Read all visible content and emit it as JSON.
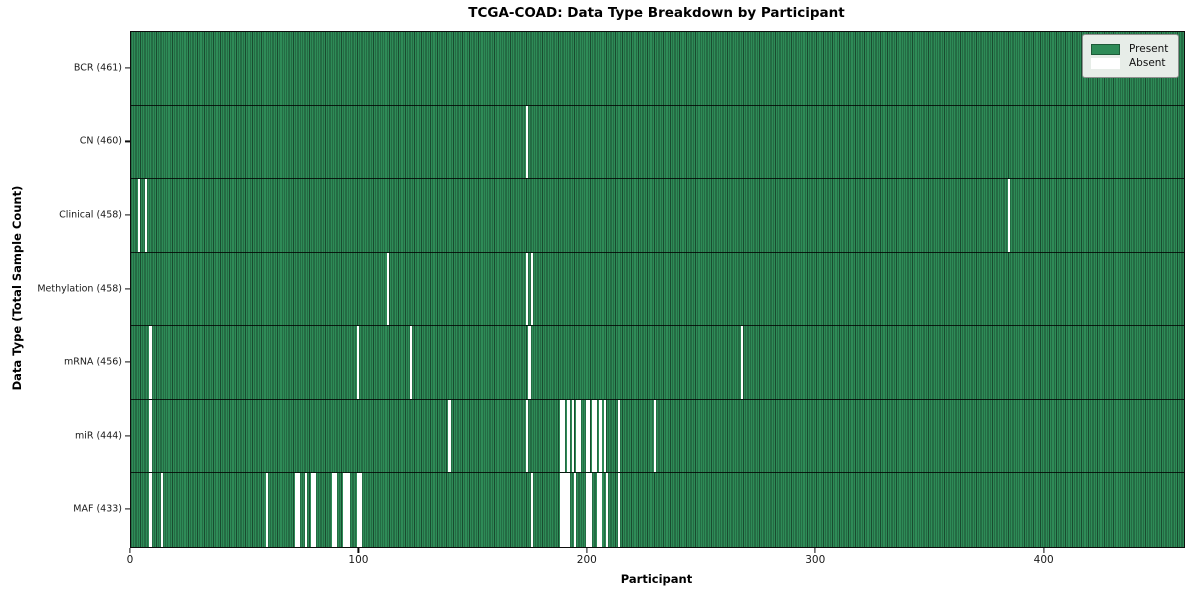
{
  "chart_data": {
    "type": "heatmap",
    "title": "TCGA-COAD: Data Type Breakdown by Participant",
    "xlabel": "Participant",
    "ylabel": "Data Type (Total Sample Count)",
    "n_participants": 461,
    "x_ticks": [
      0,
      100,
      200,
      300,
      400
    ],
    "grid": false,
    "legend_position": "upper right",
    "legend": [
      {
        "label": "Present",
        "color": "#2e8b57"
      },
      {
        "label": "Absent",
        "color": "#ffffff"
      }
    ],
    "colors": {
      "present": "#2e8b57",
      "absent": "#ffffff",
      "cell_edge": "#194c30",
      "row_separator": "#0e2418",
      "legend_bg": "#e7ede8",
      "legend_border": "#8f8f8f"
    },
    "rows": [
      {
        "label": "BCR (461)",
        "name": "BCR",
        "total": 461,
        "absent": []
      },
      {
        "label": "CN (460)",
        "name": "CN",
        "total": 460,
        "absent": [
          173
        ]
      },
      {
        "label": "Clinical (458)",
        "name": "Clinical",
        "total": 458,
        "absent": [
          3,
          6,
          384
        ]
      },
      {
        "label": "Methylation (458)",
        "name": "Methylation",
        "total": 458,
        "absent": [
          112,
          173,
          175
        ]
      },
      {
        "label": "mRNA (456)",
        "name": "mRNA",
        "total": 456,
        "absent": [
          8,
          99,
          122,
          174,
          267
        ]
      },
      {
        "label": "miR (444)",
        "name": "miR",
        "total": 444,
        "absent": [
          8,
          139,
          173,
          188,
          189,
          191,
          193,
          195,
          196,
          199,
          200,
          202,
          203,
          205,
          207,
          213,
          229
        ]
      },
      {
        "label": "MAF (433)",
        "name": "MAF",
        "total": 433,
        "absent": [
          8,
          13,
          59,
          72,
          73,
          76,
          79,
          80,
          88,
          89,
          93,
          94,
          95,
          99,
          100,
          175,
          188,
          189,
          190,
          191,
          194,
          199,
          200,
          201,
          204,
          205,
          208,
          213
        ]
      }
    ]
  }
}
